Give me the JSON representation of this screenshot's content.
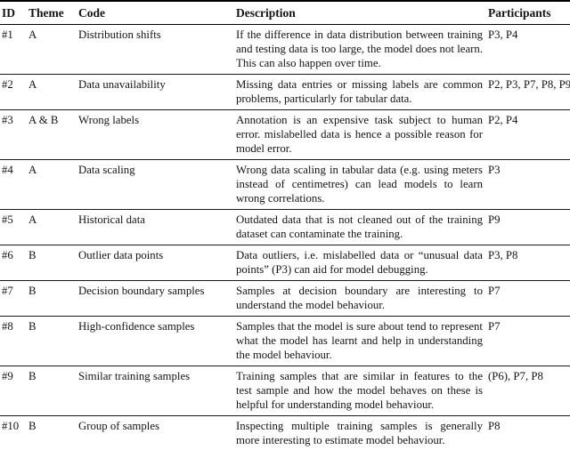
{
  "page": {
    "background_color": "#ffffff",
    "text_color": "#141414",
    "rule_color": "#000000"
  },
  "table": {
    "columns": [
      "ID",
      "Theme",
      "Code",
      "Description",
      "Participants"
    ],
    "rows": [
      {
        "id": "#1",
        "theme": "A",
        "code": "Distribution shifts",
        "description": "If the difference in data distribution between training and testing data is too large, the model does not learn. This can also happen over time.",
        "participants": "P3, P4"
      },
      {
        "id": "#2",
        "theme": "A",
        "code": "Data unavailability",
        "description": "Missing data entries or missing labels are common problems, particularly for tabular data.",
        "participants": "P2, P3, P7, P8, P9"
      },
      {
        "id": "#3",
        "theme": "A & B",
        "code": "Wrong labels",
        "description": "Annotation is an expensive task subject to human error. mislabelled data is hence a possible reason for model error.",
        "participants": "P2, P4"
      },
      {
        "id": "#4",
        "theme": "A",
        "code": "Data scaling",
        "description": "Wrong data scaling in tabular data (e.g. using meters instead of centimetres) can lead models to learn wrong correlations.",
        "participants": "P3"
      },
      {
        "id": "#5",
        "theme": "A",
        "code": "Historical data",
        "description": "Outdated data that is not cleaned out of the training dataset can contaminate the training.",
        "participants": "P9"
      },
      {
        "id": "#6",
        "theme": "B",
        "code": "Outlier data points",
        "description": "Data outliers, i.e. mislabelled data or “unusual data points” (P3) can aid for model debugging.",
        "participants": "P3, P8"
      },
      {
        "id": "#7",
        "theme": "B",
        "code": "Decision boundary samples",
        "description": "Samples at decision boundary are interesting to understand the model behaviour.",
        "participants": "P7"
      },
      {
        "id": "#8",
        "theme": "B",
        "code": "High-confidence samples",
        "description": "Samples that the model is sure about tend to represent what the model has learnt and help in understanding the model behaviour.",
        "participants": "P7"
      },
      {
        "id": "#9",
        "theme": "B",
        "code": "Similar training samples",
        "description": "Training samples that are similar in features to the test sample and how the model behaves on these is helpful for understanding model behaviour.",
        "participants": "(P6), P7, P8"
      },
      {
        "id": "#10",
        "theme": "B",
        "code": "Group of samples",
        "description": "Inspecting multiple training samples is generally more interesting to estimate model behaviour.",
        "participants": "P8"
      }
    ]
  }
}
